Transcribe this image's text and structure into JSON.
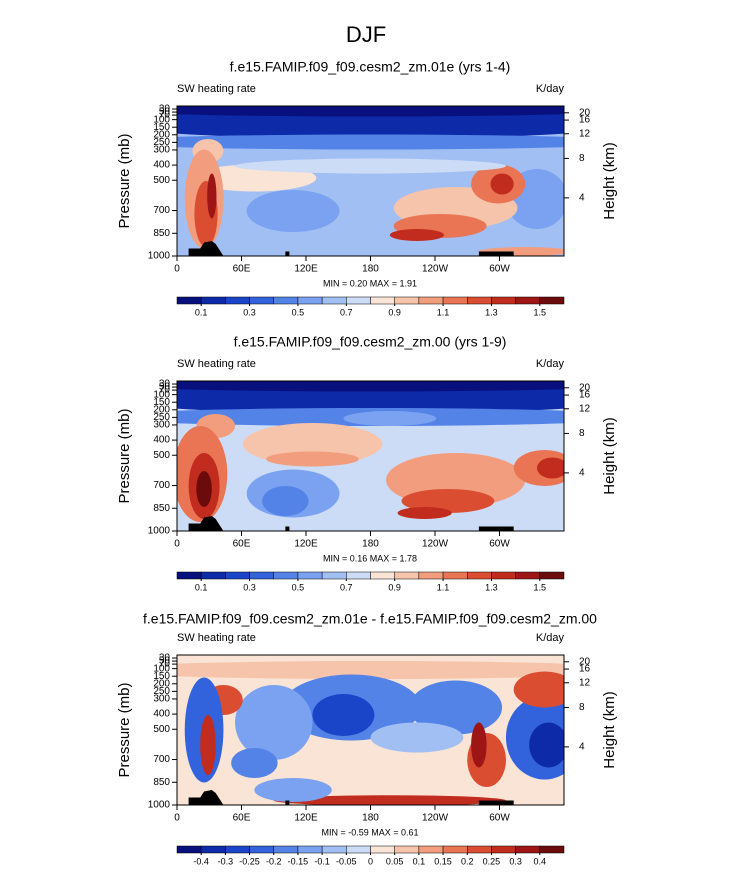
{
  "title": "DJF",
  "panels": [
    {
      "title": "f.e15.FAMIP.f09_f09.cesm2_zm.01e (yrs 1-4)",
      "left_label": "SW heating rate",
      "right_label": "K/day",
      "ylabel": "Pressure (mb)",
      "y2label": "Height (km)",
      "stats": "MIN =  0.20  MAX =  1.91",
      "ylim": [
        1000,
        10
      ],
      "yticks": [
        30,
        50,
        70,
        100,
        150,
        200,
        250,
        300,
        400,
        500,
        700,
        850,
        1000
      ],
      "y2ticks": [
        4,
        8,
        12,
        16,
        20
      ],
      "xlim": [
        0,
        360
      ],
      "xticks": [
        0,
        {
          "value": 60,
          "label": "60E"
        },
        {
          "value": 120,
          "label": "120E"
        },
        180,
        {
          "value": 240,
          "label": "120W"
        },
        {
          "value": 300,
          "label": "60W"
        }
      ],
      "colorbar": {
        "levels": [
          0.1,
          0.2,
          0.3,
          0.4,
          0.5,
          0.6,
          0.7,
          0.8,
          0.9,
          1.0,
          1.1,
          1.2,
          1.3,
          1.4,
          1.5
        ],
        "ticks": [
          0.1,
          0.3,
          0.5,
          0.7,
          0.9,
          1.1,
          1.3,
          1.5
        ],
        "colors": [
          "#08107e",
          "#0d2aa8",
          "#1a45c9",
          "#3263dc",
          "#5483e8",
          "#7aa2f0",
          "#a2bff4",
          "#cddcf6",
          "#f9e4d6",
          "#f6c4aa",
          "#f19d7e",
          "#e97554",
          "#da4d31",
          "#c22c1e",
          "#9e1515",
          "#6c0b0b"
        ]
      }
    },
    {
      "title": "f.e15.FAMIP.f09_f09.cesm2_zm.00 (yrs 1-9)",
      "left_label": "SW heating rate",
      "right_label": "K/day",
      "ylabel": "Pressure (mb)",
      "y2label": "Height (km)",
      "stats": "MIN =  0.16  MAX =  1.78",
      "ylim": [
        1000,
        10
      ],
      "yticks": [
        30,
        50,
        70,
        100,
        150,
        200,
        250,
        300,
        400,
        500,
        700,
        850,
        1000
      ],
      "y2ticks": [
        4,
        8,
        12,
        16,
        20
      ],
      "xlim": [
        0,
        360
      ],
      "xticks": [
        0,
        {
          "value": 60,
          "label": "60E"
        },
        {
          "value": 120,
          "label": "120E"
        },
        180,
        {
          "value": 240,
          "label": "120W"
        },
        {
          "value": 300,
          "label": "60W"
        }
      ],
      "colorbar": {
        "levels": [
          0.1,
          0.2,
          0.3,
          0.4,
          0.5,
          0.6,
          0.7,
          0.8,
          0.9,
          1.0,
          1.1,
          1.2,
          1.3,
          1.4,
          1.5
        ],
        "ticks": [
          0.1,
          0.3,
          0.5,
          0.7,
          0.9,
          1.1,
          1.3,
          1.5
        ],
        "colors": [
          "#08107e",
          "#0d2aa8",
          "#1a45c9",
          "#3263dc",
          "#5483e8",
          "#7aa2f0",
          "#a2bff4",
          "#cddcf6",
          "#f9e4d6",
          "#f6c4aa",
          "#f19d7e",
          "#e97554",
          "#da4d31",
          "#c22c1e",
          "#9e1515",
          "#6c0b0b"
        ]
      }
    },
    {
      "title": "f.e15.FAMIP.f09_f09.cesm2_zm.01e - f.e15.FAMIP.f09_f09.cesm2_zm.00",
      "left_label": "SW heating rate",
      "right_label": "K/day",
      "ylabel": "Pressure (mb)",
      "y2label": "Height (km)",
      "stats": "MIN = -0.59  MAX =  0.61",
      "ylim": [
        1000,
        10
      ],
      "yticks": [
        30,
        50,
        70,
        100,
        150,
        200,
        250,
        300,
        400,
        500,
        700,
        850,
        1000
      ],
      "y2ticks": [
        4,
        8,
        12,
        16,
        20
      ],
      "xlim": [
        0,
        360
      ],
      "xticks": [
        0,
        {
          "value": 60,
          "label": "60E"
        },
        {
          "value": 120,
          "label": "120E"
        },
        180,
        {
          "value": 240,
          "label": "120W"
        },
        {
          "value": 300,
          "label": "60W"
        }
      ],
      "colorbar": {
        "levels": [
          -0.4,
          -0.3,
          -0.25,
          -0.2,
          -0.15,
          -0.1,
          -0.05,
          0,
          0.05,
          0.1,
          0.15,
          0.2,
          0.25,
          0.3,
          0.4
        ],
        "ticks": [
          -0.4,
          -0.3,
          -0.25,
          -0.2,
          -0.15,
          -0.1,
          -0.05,
          0,
          0.05,
          0.1,
          0.15,
          0.2,
          0.25,
          0.3,
          0.4
        ],
        "colors": [
          "#08107e",
          "#0d2aa8",
          "#1a45c9",
          "#3263dc",
          "#5483e8",
          "#7aa2f0",
          "#a2bff4",
          "#cddcf6",
          "#f9e4d6",
          "#f6c4aa",
          "#f19d7e",
          "#e97554",
          "#da4d31",
          "#c22c1e",
          "#9e1515",
          "#6c0b0b"
        ]
      }
    }
  ]
}
